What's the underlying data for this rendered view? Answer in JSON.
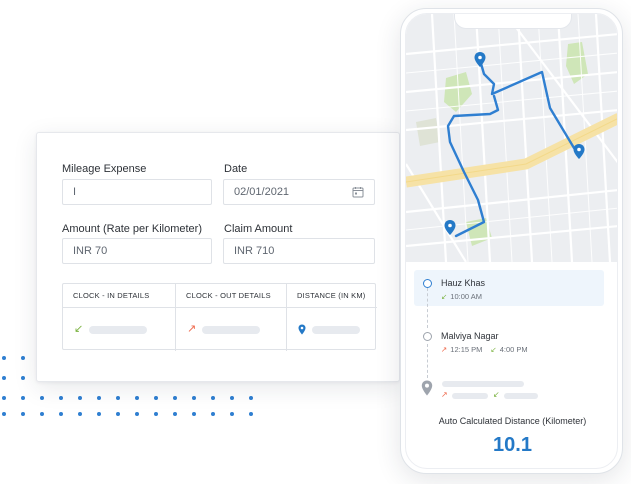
{
  "form": {
    "mileage_label": "Mileage Expense",
    "mileage_value": "I",
    "date_label": "Date",
    "date_value": "02/01/2021",
    "amount_label": "Amount (Rate per Kilometer)",
    "amount_value": "INR 70",
    "claim_label": "Claim Amount",
    "claim_value": "INR 710",
    "table": {
      "headers": [
        "CLOCK - IN DETAILS",
        "CLOCK - OUT DETAILS",
        "DISTANCE (IN KM)"
      ]
    }
  },
  "phone": {
    "stops": [
      {
        "name": "Hauz Khas",
        "time_in": "10:00 AM"
      },
      {
        "name": "Malviya Nagar",
        "time_out": "12:15 PM",
        "time_in": "4:00 PM"
      }
    ],
    "auto_label": "Auto Calculated Distance (Kilometer)",
    "auto_value": "10.1"
  },
  "colors": {
    "accent": "#2479c7",
    "route": "#2f7fd1",
    "arrow_in": "#7cb342",
    "arrow_out": "#ef6c50"
  }
}
